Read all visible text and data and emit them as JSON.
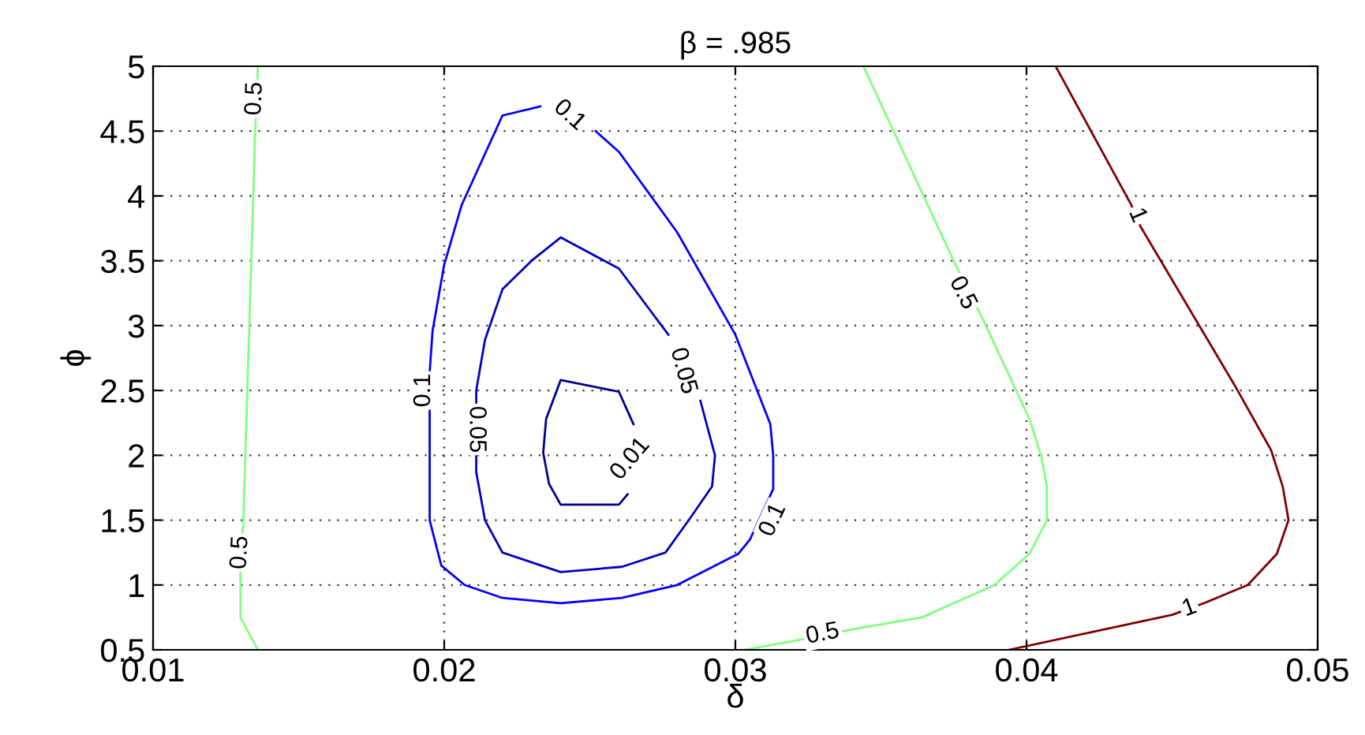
{
  "chart_data": {
    "type": "line",
    "title": "β = .985",
    "xlabel": "δ",
    "ylabel": "ϕ",
    "xlim": [
      0.01,
      0.05
    ],
    "xticks": [
      0.01,
      0.02,
      0.03,
      0.04,
      0.05
    ],
    "ylim": [
      0.5,
      5
    ],
    "yticks": [
      0.5,
      1,
      1.5,
      2,
      2.5,
      3,
      3.5,
      4,
      4.5,
      5
    ],
    "grid": true,
    "line_style": "solid",
    "marker": "none",
    "series": [
      {
        "color": "#0000ff",
        "x": [
          0.0252,
          0.026,
          0.028,
          0.03,
          0.0312,
          0.0313,
          0.0313,
          0.0305,
          0.0301,
          0.028,
          0.0261,
          0.024,
          0.022,
          0.0207,
          0.0199,
          0.0195,
          0.0195,
          0.0195,
          0.0195,
          0.0196,
          0.02,
          0.0206,
          0.022,
          0.0233
        ],
        "values": [
          4.5,
          4.34,
          3.72,
          2.93,
          2.24,
          2.0,
          1.74,
          1.35,
          1.24,
          1.0,
          0.9,
          0.86,
          0.9,
          1.0,
          1.15,
          1.5,
          2.0,
          2.24,
          2.64,
          2.96,
          3.47,
          3.93,
          4.62,
          4.69
        ]
      },
      {
        "color": "#0000bf",
        "x": [
          0.0277,
          0.026,
          0.024,
          0.023,
          0.022,
          0.0214,
          0.0211,
          0.0211,
          0.0214,
          0.022,
          0.024,
          0.0261,
          0.0276,
          0.0284,
          0.0292,
          0.0293,
          0.0288
        ],
        "values": [
          2.93,
          3.44,
          3.68,
          3.5,
          3.28,
          2.89,
          2.5,
          1.87,
          1.5,
          1.25,
          1.1,
          1.14,
          1.25,
          1.5,
          1.76,
          2.0,
          2.42
        ]
      },
      {
        "color": "#00008f",
        "x": [
          0.0265,
          0.026,
          0.024,
          0.0235,
          0.0234,
          0.0236,
          0.024,
          0.026,
          0.0263
        ],
        "values": [
          2.24,
          2.49,
          2.58,
          2.28,
          2.02,
          1.78,
          1.62,
          1.62,
          1.7
        ]
      },
      {
        "color": "#80ff80",
        "x": [
          0.0136,
          0.0135,
          0.0131,
          0.013,
          0.013,
          0.0136
        ],
        "values": [
          5.0,
          4.44,
          1.5,
          1.09,
          0.75,
          0.5
        ]
      },
      {
        "color": "#80ff80",
        "x": [
          0.0344,
          0.0376,
          0.0385,
          0.0401,
          0.0405,
          0.0407,
          0.0407,
          0.0401,
          0.0389,
          0.0364,
          0.0343,
          0.0318,
          0.0303
        ],
        "values": [
          5.0,
          3.45,
          3.05,
          2.28,
          2.0,
          1.76,
          1.5,
          1.24,
          1.0,
          0.75,
          0.67,
          0.56,
          0.5
        ]
      },
      {
        "color": "#800000",
        "x": [
          0.041,
          0.0436,
          0.0439,
          0.0472,
          0.0484,
          0.0488,
          0.049,
          0.0486,
          0.0476,
          0.0461,
          0.045,
          0.0394
        ],
        "values": [
          5.0,
          3.93,
          3.77,
          2.52,
          2.04,
          1.76,
          1.5,
          1.24,
          1.0,
          0.86,
          0.77,
          0.5
        ]
      }
    ],
    "annotations": [
      {
        "text": "0.1",
        "x": 0.0243,
        "y": 4.62
      },
      {
        "text": "0.1",
        "x": 0.0313,
        "y": 1.5
      },
      {
        "text": "0.1",
        "x": 0.0193,
        "y": 2.5
      },
      {
        "text": "0.05",
        "x": 0.0211,
        "y": 2.2
      },
      {
        "text": "0.05",
        "x": 0.0282,
        "y": 2.65
      },
      {
        "text": "0.01",
        "x": 0.0264,
        "y": 1.97
      },
      {
        "text": "0.5",
        "x": 0.0135,
        "y": 4.75
      },
      {
        "text": "0.5",
        "x": 0.013,
        "y": 1.25
      },
      {
        "text": "0.5",
        "x": 0.0378,
        "y": 3.25
      },
      {
        "text": "0.5",
        "x": 0.033,
        "y": 0.62
      },
      {
        "text": "1",
        "x": 0.0438,
        "y": 3.85
      },
      {
        "text": "1",
        "x": 0.0456,
        "y": 0.82
      }
    ]
  }
}
